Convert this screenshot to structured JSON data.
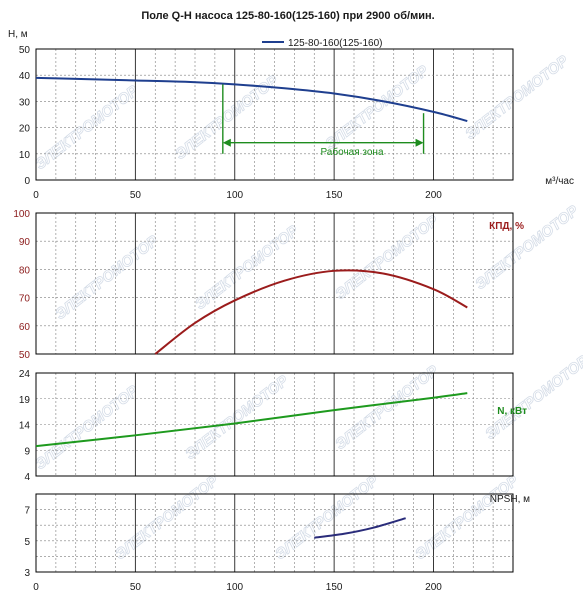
{
  "chart_data": [
    {
      "type": "line",
      "title": "Поле Q-H насоса 125-80-160(125-160) при 2900 об/мин.",
      "ylabel": "Н, м",
      "xlabel": "м³/час",
      "xlim": [
        0,
        240
      ],
      "ylim": [
        0,
        50
      ],
      "x_ticks": [
        "0",
        "50",
        "100",
        "150",
        "200"
      ],
      "y_ticks": [
        "0",
        "10",
        "20",
        "30",
        "40",
        "50"
      ],
      "legend": "top-right",
      "series": [
        {
          "name": "125-80-160(125-160)",
          "color": "#1f3f8f",
          "x": [
            0,
            25,
            50,
            75,
            100,
            125,
            150,
            175,
            200,
            217
          ],
          "y": [
            39,
            38.5,
            38,
            37.5,
            36.5,
            35,
            33,
            30,
            26,
            22.5
          ]
        }
      ],
      "annotations": [
        {
          "text": "Рабочая зона",
          "color": "#1e8c1e",
          "x_range": [
            94,
            195
          ],
          "y": 15
        }
      ],
      "working_zone_lines": [
        {
          "x": 94,
          "y_top": 36.5
        },
        {
          "x": 195,
          "y_top": 25.5
        }
      ]
    },
    {
      "type": "line",
      "ylabel": "КПД, %",
      "xlim": [
        0,
        240
      ],
      "ylim": [
        50,
        100
      ],
      "y_ticks": [
        "50",
        "60",
        "70",
        "80",
        "90",
        "100"
      ],
      "series": [
        {
          "color": "#9b1c1c",
          "x": [
            60,
            80,
            100,
            125,
            150,
            175,
            200,
            217
          ],
          "y": [
            50,
            61,
            69,
            76,
            79.5,
            78.5,
            73,
            66.5
          ]
        }
      ]
    },
    {
      "type": "line",
      "ylabel": "N, кВт",
      "xlim": [
        0,
        240
      ],
      "ylim": [
        4,
        24
      ],
      "y_ticks": [
        "4",
        "9",
        "14",
        "19",
        "24"
      ],
      "series": [
        {
          "color": "#1e9a1e",
          "x": [
            0,
            50,
            100,
            150,
            200,
            217
          ],
          "y": [
            9.8,
            11.9,
            14.2,
            16.8,
            19.2,
            20.1
          ]
        }
      ]
    },
    {
      "type": "line",
      "ylabel": "NPSH, м",
      "xlabel": "",
      "xlim": [
        0,
        240
      ],
      "ylim": [
        3,
        8
      ],
      "x_ticks": [
        "0",
        "50",
        "100",
        "150",
        "200"
      ],
      "y_ticks": [
        "3",
        "5",
        "7"
      ],
      "series": [
        {
          "color": "#2a2c7a",
          "x": [
            140,
            155,
            170,
            186
          ],
          "y": [
            5.2,
            5.45,
            5.85,
            6.45
          ]
        }
      ]
    }
  ],
  "watermark": "ЭЛЕКТРОМОТОР"
}
